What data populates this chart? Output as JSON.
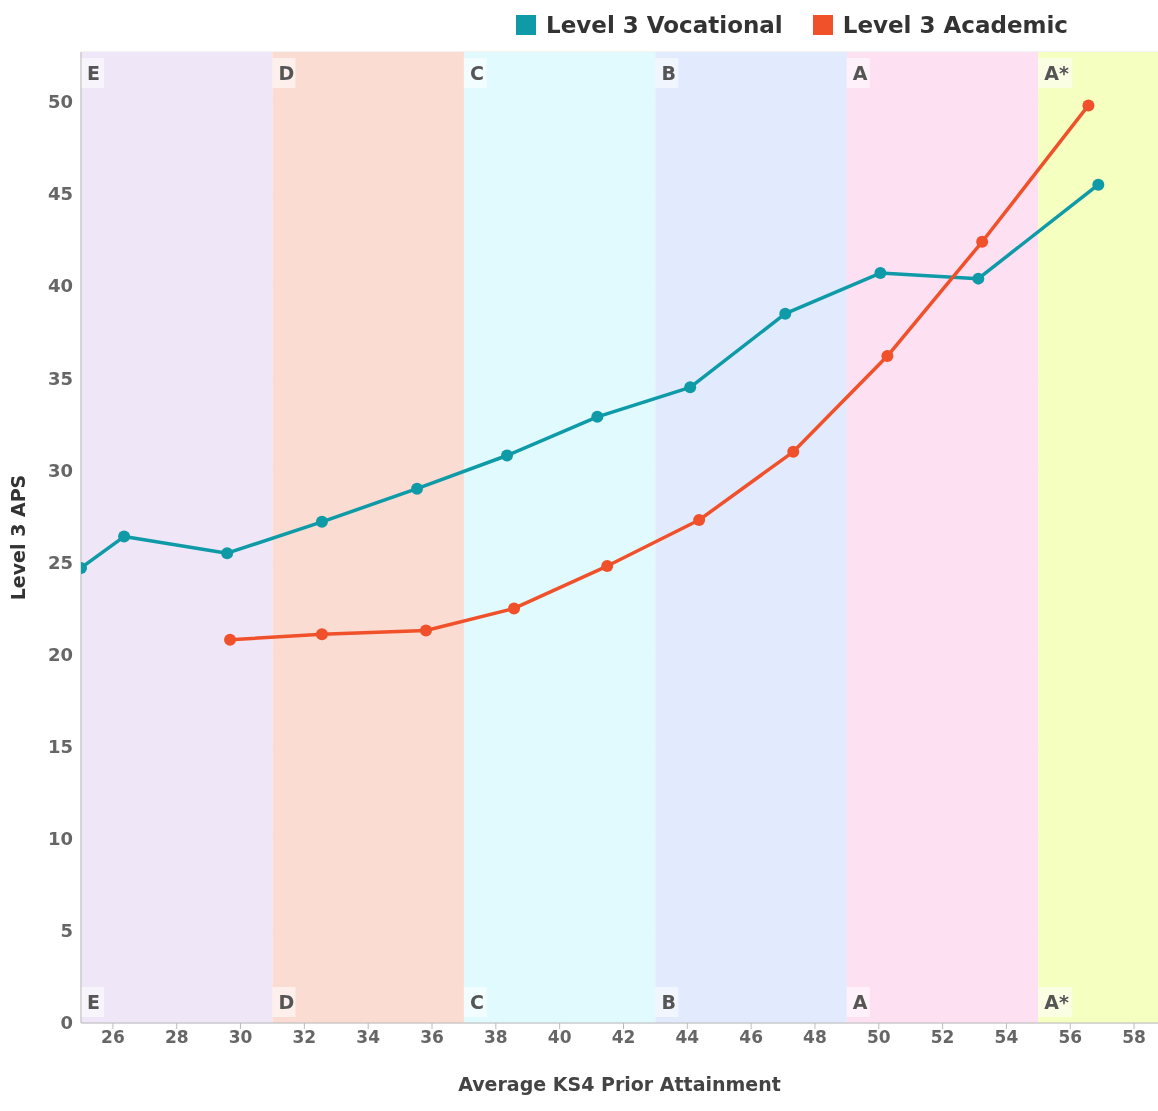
{
  "chart_data": {
    "type": "line",
    "xlabel": "Average KS4 Prior Attainment",
    "ylabel": "Level 3 APS",
    "xlim": [
      25,
      58.75
    ],
    "xticks": [
      26,
      28,
      30,
      32,
      34,
      36,
      38,
      40,
      42,
      44,
      46,
      48,
      50,
      52,
      54,
      56,
      58
    ],
    "ylim": [
      0,
      52.7
    ],
    "yticks": [
      0,
      5,
      10,
      15,
      20,
      25,
      30,
      35,
      40,
      45,
      50
    ],
    "series": [
      {
        "name": "Level 3 Vocational",
        "color": "#0e9aa7",
        "x": [
          25,
          26.35,
          29.58,
          32.55,
          35.53,
          38.35,
          41.18,
          44.09,
          47.07,
          50.05,
          53.12,
          56.88
        ],
        "values": [
          24.7,
          26.4,
          25.5,
          27.2,
          29.0,
          30.8,
          32.9,
          34.5,
          38.5,
          40.7,
          40.4,
          45.5
        ]
      },
      {
        "name": "Level 3 Academic",
        "color": "#f0512a",
        "x": [
          29.67,
          32.55,
          35.81,
          38.57,
          41.49,
          44.37,
          47.32,
          50.27,
          53.24,
          56.57
        ],
        "values": [
          20.8,
          21.1,
          21.3,
          22.5,
          24.8,
          27.3,
          31.0,
          36.2,
          42.4,
          49.8
        ]
      }
    ],
    "bands": [
      {
        "axis": "x",
        "from": 25,
        "to": 31,
        "label": "E",
        "color": "#efe6f7"
      },
      {
        "axis": "x",
        "from": 31,
        "to": 37,
        "label": "D",
        "color": "#fadcd2"
      },
      {
        "axis": "x",
        "from": 37,
        "to": 43,
        "label": "C",
        "color": "#e0fafd"
      },
      {
        "axis": "x",
        "from": 43,
        "to": 49,
        "label": "B",
        "color": "#e1ebfd"
      },
      {
        "axis": "x",
        "from": 49,
        "to": 55,
        "label": "A",
        "color": "#fde0f2"
      },
      {
        "axis": "x",
        "from": 55,
        "to": 58.75,
        "label": "A*",
        "color": "#f4ffc0"
      }
    ],
    "grid": true,
    "legend": "top right",
    "marker": "circle",
    "line_style": "solid"
  }
}
